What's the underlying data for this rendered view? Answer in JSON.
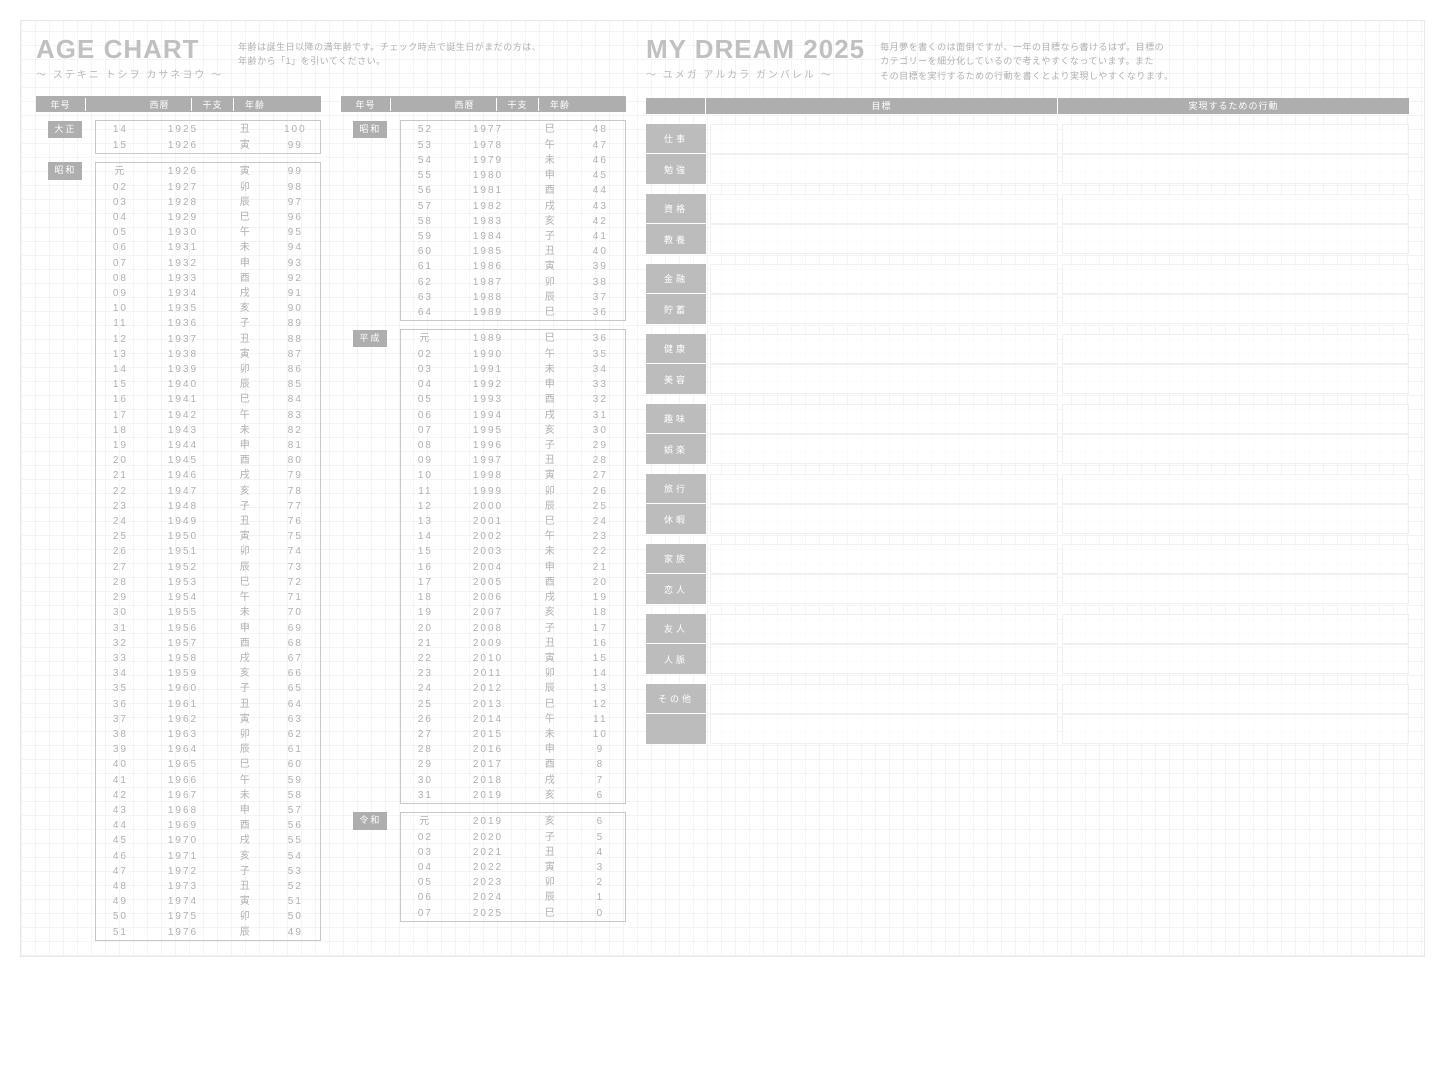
{
  "ageChart": {
    "title": "AGE CHART",
    "subtitle": "〜 ステキニ トシヲ カサネヨウ 〜",
    "desc1": "年齢は誕生日以降の満年齢です。チェック時点で誕生日がまだの方は、",
    "desc2": "年齢から「1」を引いてください。",
    "headers": {
      "era": "年号",
      "ad": "西暦",
      "zodiac": "干支",
      "age": "年齢"
    },
    "zodiac": [
      "子",
      "丑",
      "寅",
      "卯",
      "辰",
      "巳",
      "午",
      "未",
      "申",
      "酉",
      "戌",
      "亥"
    ],
    "eras": [
      {
        "name": "大正",
        "start": 14,
        "end": 15,
        "firstAD": 1925
      },
      {
        "name": "昭和",
        "start": 1,
        "end": 64,
        "firstAD": 1926,
        "gan": true
      },
      {
        "name": "平成",
        "start": 1,
        "end": 31,
        "firstAD": 1989,
        "gan": true
      },
      {
        "name": "令和",
        "start": 1,
        "end": 7,
        "firstAD": 2019,
        "gan": true
      }
    ],
    "refYear": 2025
  },
  "dream": {
    "title": "MY DREAM 2025",
    "subtitle": "〜 ユメガ アルカラ ガンバレル 〜",
    "desc1": "毎月夢を書くのは面倒ですが、一年の目標なら書けるはず。目標の",
    "desc2": "カテゴリーを細分化しているので考えやすくなっています。また",
    "desc3": "その目標を実行するための行動を書くとより実現しやすくなります。",
    "headers": {
      "goal": "目標",
      "action": "実現するための行動"
    },
    "groups": [
      [
        "仕事",
        "勉強"
      ],
      [
        "資格",
        "教養"
      ],
      [
        "金融",
        "貯蓄"
      ],
      [
        "健康",
        "美容"
      ],
      [
        "趣味",
        "娯楽"
      ],
      [
        "旅行",
        "休暇"
      ],
      [
        "家族",
        "恋人"
      ],
      [
        "友人",
        "人脈"
      ],
      [
        "その他",
        ""
      ]
    ]
  }
}
